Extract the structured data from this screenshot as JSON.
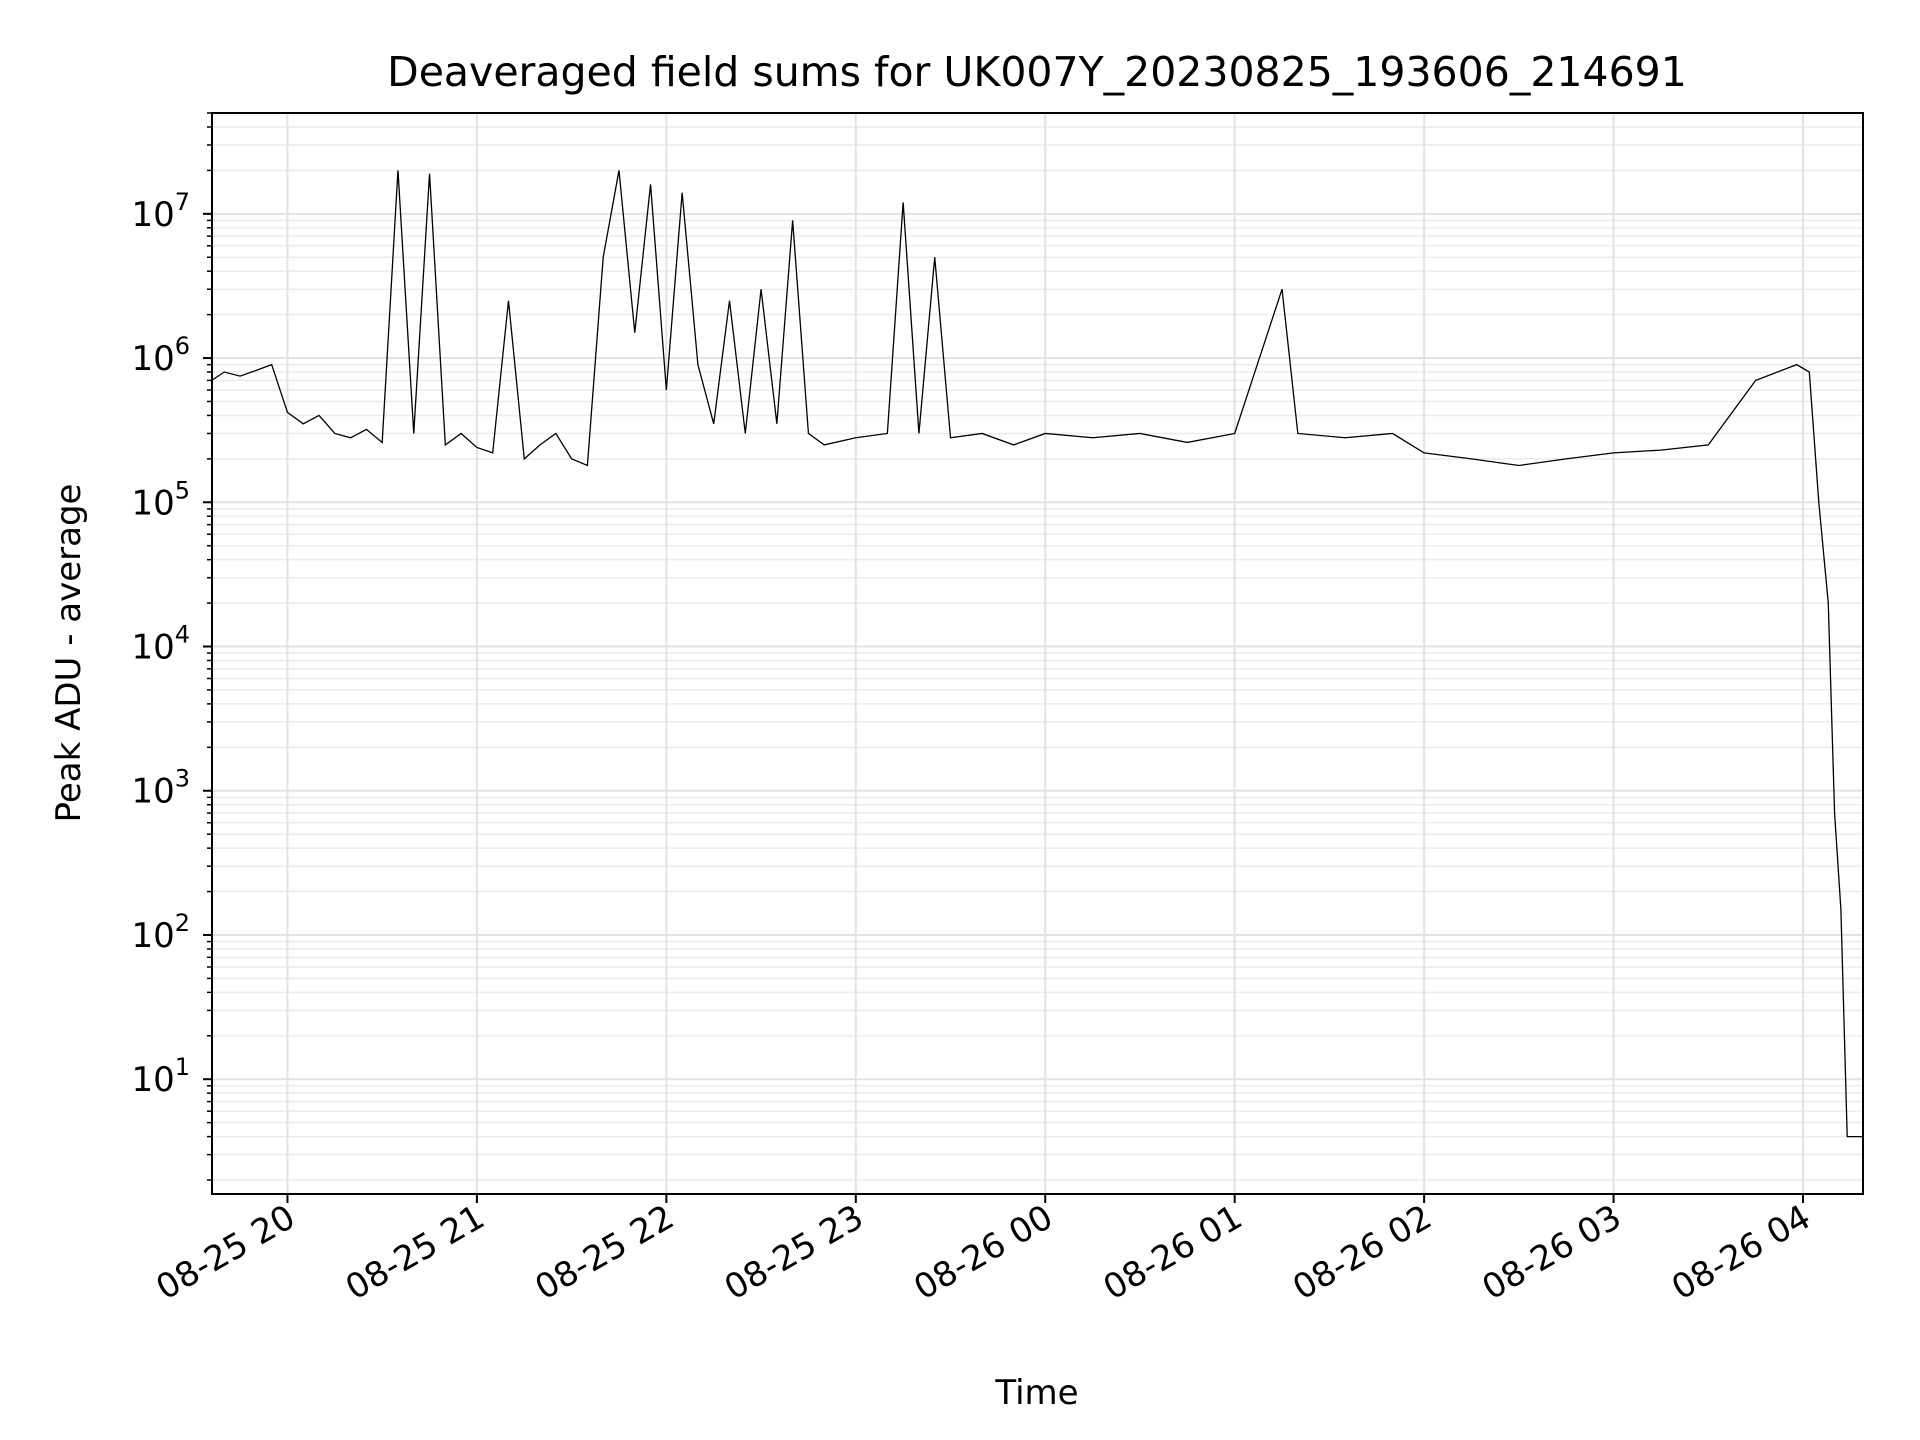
{
  "chart_data": {
    "type": "line",
    "title": "Deaveraged field sums for UK007Y_20230825_193606_214691",
    "xlabel": "Time",
    "ylabel": "Peak ADU - average",
    "x_axis": {
      "kind": "datetime",
      "range": [
        "2023-08-25T19:36:06",
        "2023-08-26T04:19:00"
      ],
      "ticks": [
        {
          "value": "2023-08-25T20:00",
          "label": "08-25 20"
        },
        {
          "value": "2023-08-25T21:00",
          "label": "08-25 21"
        },
        {
          "value": "2023-08-25T22:00",
          "label": "08-25 22"
        },
        {
          "value": "2023-08-25T23:00",
          "label": "08-25 23"
        },
        {
          "value": "2023-08-26T00:00",
          "label": "08-26 00"
        },
        {
          "value": "2023-08-26T01:00",
          "label": "08-26 01"
        },
        {
          "value": "2023-08-26T02:00",
          "label": "08-26 02"
        },
        {
          "value": "2023-08-26T03:00",
          "label": "08-26 03"
        },
        {
          "value": "2023-08-26T04:00",
          "label": "08-26 04"
        }
      ]
    },
    "y_axis": {
      "scale": "log",
      "range": [
        1.6,
        50000000
      ],
      "ticks": [
        {
          "value": 10,
          "base": "10",
          "exp": "1"
        },
        {
          "value": 100,
          "base": "10",
          "exp": "2"
        },
        {
          "value": 1000,
          "base": "10",
          "exp": "3"
        },
        {
          "value": 10000,
          "base": "10",
          "exp": "4"
        },
        {
          "value": 100000,
          "base": "10",
          "exp": "5"
        },
        {
          "value": 1000000,
          "base": "10",
          "exp": "6"
        },
        {
          "value": 10000000,
          "base": "10",
          "exp": "7"
        }
      ]
    },
    "grid": true,
    "series": [
      {
        "color": "#000000",
        "points": [
          [
            "2023-08-25T19:36",
            700000
          ],
          [
            "2023-08-25T19:40",
            800000
          ],
          [
            "2023-08-25T19:45",
            750000
          ],
          [
            "2023-08-25T19:50",
            820000
          ],
          [
            "2023-08-25T19:55",
            900000
          ],
          [
            "2023-08-25T20:00",
            420000
          ],
          [
            "2023-08-25T20:05",
            350000
          ],
          [
            "2023-08-25T20:10",
            400000
          ],
          [
            "2023-08-25T20:15",
            300000
          ],
          [
            "2023-08-25T20:20",
            280000
          ],
          [
            "2023-08-25T20:25",
            320000
          ],
          [
            "2023-08-25T20:30",
            260000
          ],
          [
            "2023-08-25T20:35",
            20000000
          ],
          [
            "2023-08-25T20:40",
            300000
          ],
          [
            "2023-08-25T20:45",
            19000000
          ],
          [
            "2023-08-25T20:50",
            250000
          ],
          [
            "2023-08-25T20:55",
            300000
          ],
          [
            "2023-08-25T21:00",
            240000
          ],
          [
            "2023-08-25T21:05",
            220000
          ],
          [
            "2023-08-25T21:10",
            2500000
          ],
          [
            "2023-08-25T21:15",
            200000
          ],
          [
            "2023-08-25T21:20",
            250000
          ],
          [
            "2023-08-25T21:25",
            300000
          ],
          [
            "2023-08-25T21:30",
            200000
          ],
          [
            "2023-08-25T21:35",
            180000
          ],
          [
            "2023-08-25T21:40",
            5000000
          ],
          [
            "2023-08-25T21:45",
            20000000
          ],
          [
            "2023-08-25T21:50",
            1500000
          ],
          [
            "2023-08-25T21:55",
            16000000
          ],
          [
            "2023-08-25T22:00",
            600000
          ],
          [
            "2023-08-25T22:05",
            14000000
          ],
          [
            "2023-08-25T22:10",
            900000
          ],
          [
            "2023-08-25T22:15",
            350000
          ],
          [
            "2023-08-25T22:20",
            2500000
          ],
          [
            "2023-08-25T22:25",
            300000
          ],
          [
            "2023-08-25T22:30",
            3000000
          ],
          [
            "2023-08-25T22:35",
            350000
          ],
          [
            "2023-08-25T22:40",
            9000000
          ],
          [
            "2023-08-25T22:45",
            300000
          ],
          [
            "2023-08-25T22:50",
            250000
          ],
          [
            "2023-08-25T23:00",
            280000
          ],
          [
            "2023-08-25T23:10",
            300000
          ],
          [
            "2023-08-25T23:15",
            12000000
          ],
          [
            "2023-08-25T23:20",
            300000
          ],
          [
            "2023-08-25T23:25",
            5000000
          ],
          [
            "2023-08-25T23:30",
            280000
          ],
          [
            "2023-08-25T23:40",
            300000
          ],
          [
            "2023-08-25T23:50",
            250000
          ],
          [
            "2023-08-26T00:00",
            300000
          ],
          [
            "2023-08-26T00:15",
            280000
          ],
          [
            "2023-08-26T00:30",
            300000
          ],
          [
            "2023-08-26T00:45",
            260000
          ],
          [
            "2023-08-26T01:00",
            300000
          ],
          [
            "2023-08-26T01:15",
            3000000
          ],
          [
            "2023-08-26T01:20",
            300000
          ],
          [
            "2023-08-26T01:35",
            280000
          ],
          [
            "2023-08-26T01:50",
            300000
          ],
          [
            "2023-08-26T02:00",
            220000
          ],
          [
            "2023-08-26T02:15",
            200000
          ],
          [
            "2023-08-26T02:30",
            180000
          ],
          [
            "2023-08-26T02:45",
            200000
          ],
          [
            "2023-08-26T03:00",
            220000
          ],
          [
            "2023-08-26T03:15",
            230000
          ],
          [
            "2023-08-26T03:30",
            250000
          ],
          [
            "2023-08-26T03:45",
            700000
          ],
          [
            "2023-08-26T03:58",
            900000
          ],
          [
            "2023-08-26T04:02",
            800000
          ],
          [
            "2023-08-26T04:05",
            100000
          ],
          [
            "2023-08-26T04:08",
            20000
          ],
          [
            "2023-08-26T04:10",
            700
          ],
          [
            "2023-08-26T04:12",
            150
          ],
          [
            "2023-08-26T04:14",
            4
          ],
          [
            "2023-08-26T04:19",
            4
          ]
        ]
      }
    ]
  }
}
